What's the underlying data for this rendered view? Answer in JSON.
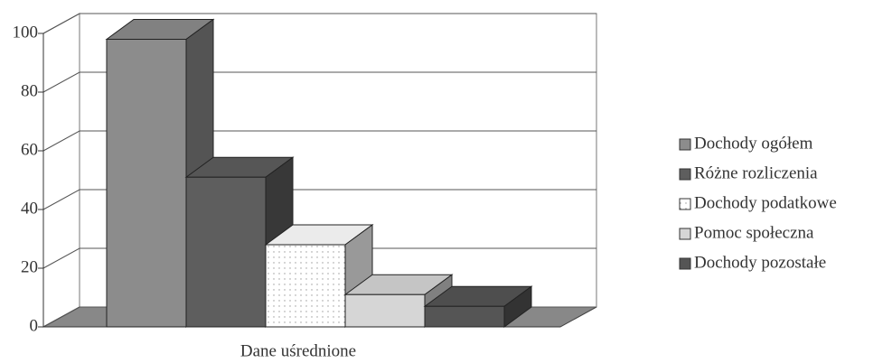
{
  "chart_data": {
    "type": "bar3d",
    "categories": [
      "Dane uśrednione"
    ],
    "series": [
      {
        "name": "Dochody ogółem",
        "color": "#8c8c8c",
        "values": [
          98
        ]
      },
      {
        "name": "Różne rozliczenia",
        "color": "#5e5e5e",
        "values": [
          51
        ]
      },
      {
        "name": "Dochody podatkowe",
        "color": "#ffffff",
        "values": [
          28
        ]
      },
      {
        "name": "Pomoc społeczna",
        "color": "#d6d6d6",
        "values": [
          11
        ]
      },
      {
        "name": "Dochody pozostałe",
        "color": "#555555",
        "values": [
          7
        ]
      }
    ],
    "ylim": [
      0,
      100
    ],
    "yticks": [
      0,
      20,
      40,
      60,
      80,
      100
    ],
    "grid": true
  }
}
